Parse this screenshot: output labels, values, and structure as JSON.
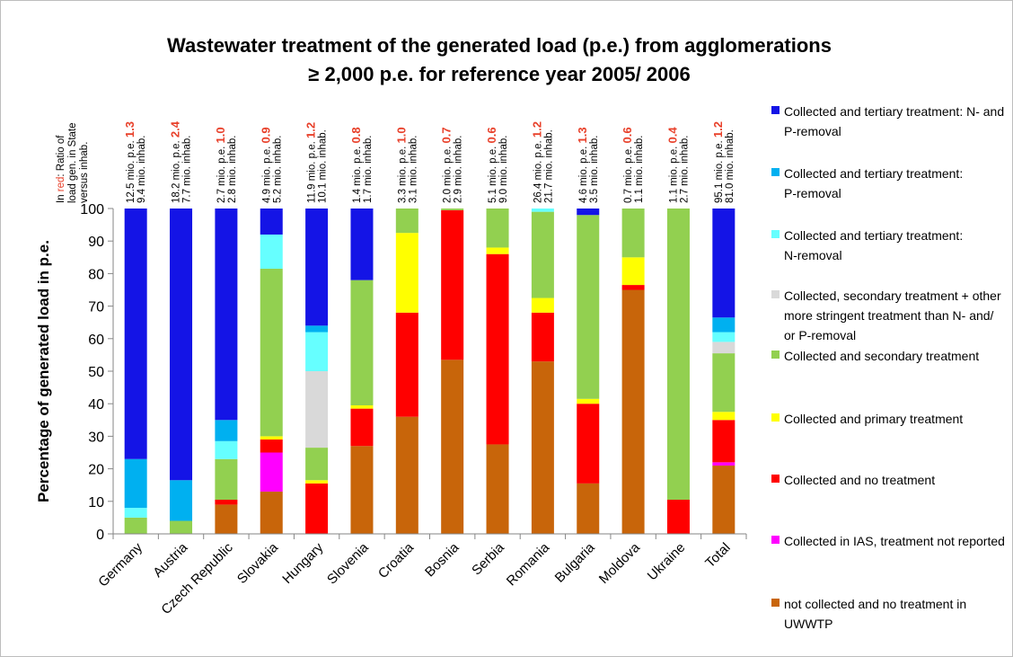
{
  "chart_data": {
    "type": "stacked-bar",
    "title": [
      "Wastewater treatment of the generated load (p.e.) from agglomerations",
      "≥ 2,000 p.e. for reference year 2005/ 2006"
    ],
    "y_label": "Percentage of generated load in p.e.",
    "note": [
      [
        "In ",
        "red",
        ": Ratio of"
      ],
      [
        "load gen. in State"
      ],
      [
        "versus inhab."
      ]
    ],
    "categories": [
      "Germany",
      "Austria",
      "Czech Republic",
      "Slovakia",
      "Hungary",
      "Slovenia",
      "Croatia",
      "Bosnia",
      "Serbia",
      "Romania",
      "Bulgaria",
      "Moldova",
      "Ukraine",
      "Total"
    ],
    "load_labels": [
      "12.5 mio. p.e.",
      "18.2 mio. p.e.",
      "2.7 mio. p.e.",
      "4.9 mio. p.e.",
      "11.9 mio. p.e.",
      "1.4 mio. p.e.",
      "3.3 mio. p.e.",
      "2.0 mio. p.e.",
      "5.1 mio. p.e.",
      "26.4 mio. p.e.",
      "4.6 mio. p.e.",
      "0.7 mio. p.e.",
      "1.1 mio. p.e.",
      "95.1 mio. p.e."
    ],
    "ratios": [
      "1.3",
      "2.4",
      "1.0",
      "0.9",
      "1.2",
      "0.8",
      "1.0",
      "0.7",
      "0.6",
      "1.2",
      "1.3",
      "0.6",
      "0.4",
      "1.2"
    ],
    "ratio_color": "#e8402a",
    "inhab_labels": [
      "9.4 mio. inhab.",
      "7.7 mio. inhab.",
      "2.8 mio. inhab.",
      "5.2 mio. inhab.",
      "10.1 mio. inhab.",
      "1.7 mio. inhab.",
      "3.1 mio. inhab.",
      "2.9 mio. inhab.",
      "9.0 mio. inhab.",
      "21.7 mio. inhab.",
      "3.5 mio. inhab.",
      "1.1 mio. inhab.",
      "2.7 mio. inhab.",
      "81.0 mio. inhab."
    ],
    "ylim": [
      0,
      100
    ],
    "yticks": [
      0,
      10,
      20,
      30,
      40,
      50,
      60,
      70,
      80,
      90,
      100
    ],
    "series": [
      {
        "name": "not collected and no treatment in UWWTP",
        "color": "#c8650a",
        "values": [
          0,
          0,
          9,
          13,
          0,
          27,
          36,
          53.5,
          27.5,
          53,
          15.5,
          75,
          0,
          21
        ]
      },
      {
        "name": "Collected in IAS, treatment not reported",
        "color": "#ff00ff",
        "values": [
          0,
          0,
          0,
          12,
          0,
          0,
          0,
          0,
          0,
          0,
          0,
          0,
          0,
          1
        ]
      },
      {
        "name": "Collected and no treatment",
        "color": "#ff0000",
        "values": [
          0,
          0,
          1.5,
          4,
          15.5,
          11.5,
          32,
          46,
          58.5,
          15,
          24.5,
          1.5,
          10.5,
          13
        ]
      },
      {
        "name": "Collected and primary treatment",
        "color": "#ffff00",
        "values": [
          0,
          0,
          0,
          1,
          1,
          1,
          24.5,
          0,
          2,
          4.5,
          1.5,
          8.5,
          0,
          2.5
        ]
      },
      {
        "name": "Collected and secondary treatment",
        "color": "#92d050",
        "values": [
          5,
          4,
          12.5,
          51.5,
          10,
          38.5,
          7.5,
          0.5,
          12,
          26.5,
          56.5,
          15,
          89.5,
          18
        ]
      },
      {
        "name": "Collected, secondary treatment + other more stringent treatment than N- and/ or P-removal",
        "color": "#d9d9d9",
        "values": [
          0,
          0,
          0,
          0,
          23.5,
          0,
          0,
          0,
          0,
          0,
          0,
          0,
          0,
          3.5
        ]
      },
      {
        "name": "Collected and tertiary treatment: N-removal",
        "color": "#66ffff",
        "values": [
          3,
          0,
          5.5,
          10.5,
          12,
          0,
          0,
          0,
          0,
          1,
          0,
          0,
          0,
          3
        ]
      },
      {
        "name": "Collected and tertiary treatment: P-removal",
        "color": "#00b0f0",
        "values": [
          15,
          12.5,
          6.5,
          0,
          2,
          0,
          0,
          0,
          0,
          0,
          0,
          0,
          0,
          4.5
        ]
      },
      {
        "name": "Collected and tertiary treatment: N- and P-removal",
        "color": "#1414e6",
        "values": [
          77,
          83.5,
          65,
          8,
          36,
          22,
          0,
          0,
          0,
          0,
          2,
          0,
          0,
          33.5
        ]
      }
    ]
  }
}
